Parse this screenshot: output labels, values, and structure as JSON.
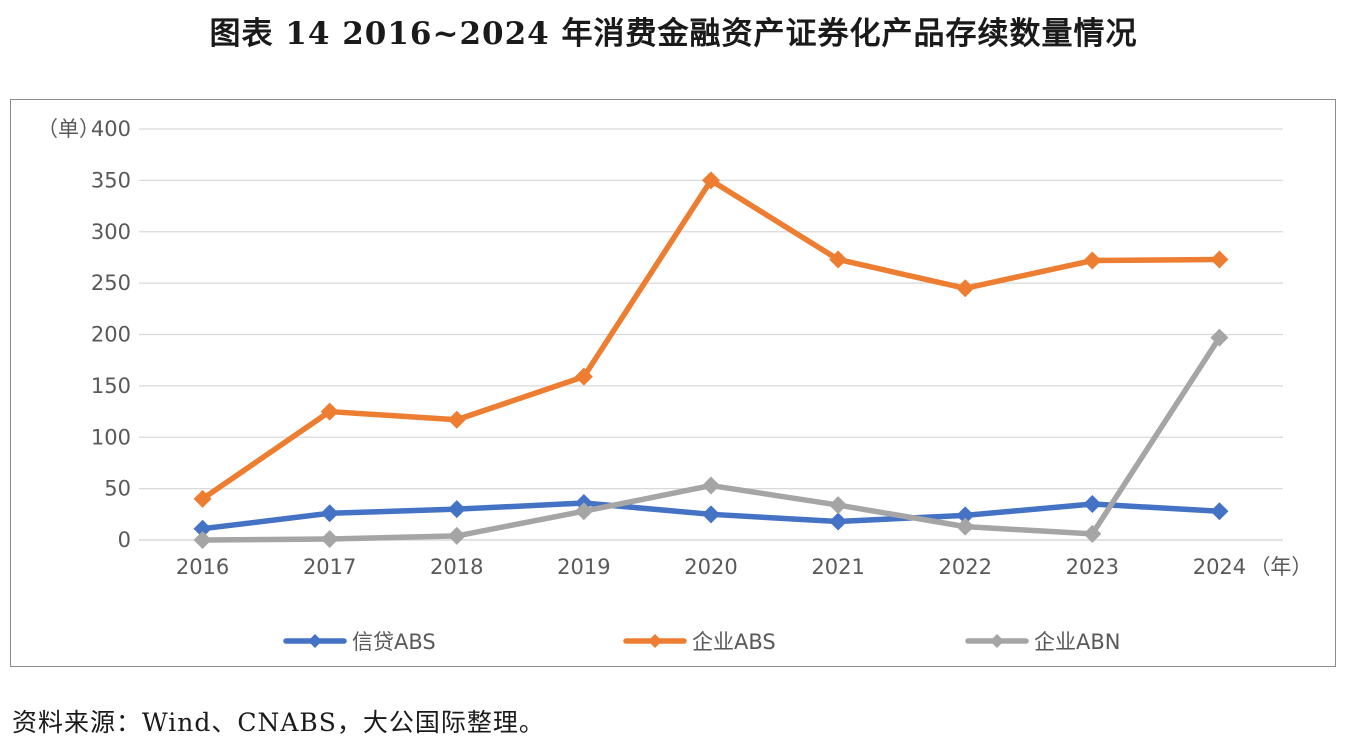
{
  "title": "图表 14  2016~2024 年消费金融资产证券化产品存续数量情况",
  "source": "资料来源：Wind、CNABS，大公国际整理。",
  "chart_data": {
    "type": "line",
    "y_unit_label": "（单）",
    "x_unit_label": "（年）",
    "categories": [
      "2016",
      "2017",
      "2018",
      "2019",
      "2020",
      "2021",
      "2022",
      "2023",
      "2024"
    ],
    "ylim": [
      0,
      400
    ],
    "y_ticks": [
      0,
      50,
      100,
      150,
      200,
      250,
      300,
      350,
      400
    ],
    "grid": true,
    "legend_position": "bottom",
    "series": [
      {
        "name": "信贷ABS",
        "color": "#4472c4",
        "values": [
          11,
          26,
          30,
          36,
          25,
          18,
          24,
          35,
          28
        ]
      },
      {
        "name": "企业ABS",
        "color": "#ed7d31",
        "values": [
          40,
          125,
          117,
          159,
          350,
          273,
          245,
          272,
          273
        ]
      },
      {
        "name": "企业ABN",
        "color": "#a5a5a5",
        "values": [
          0,
          1,
          4,
          28,
          53,
          34,
          13,
          6,
          197
        ]
      }
    ]
  }
}
